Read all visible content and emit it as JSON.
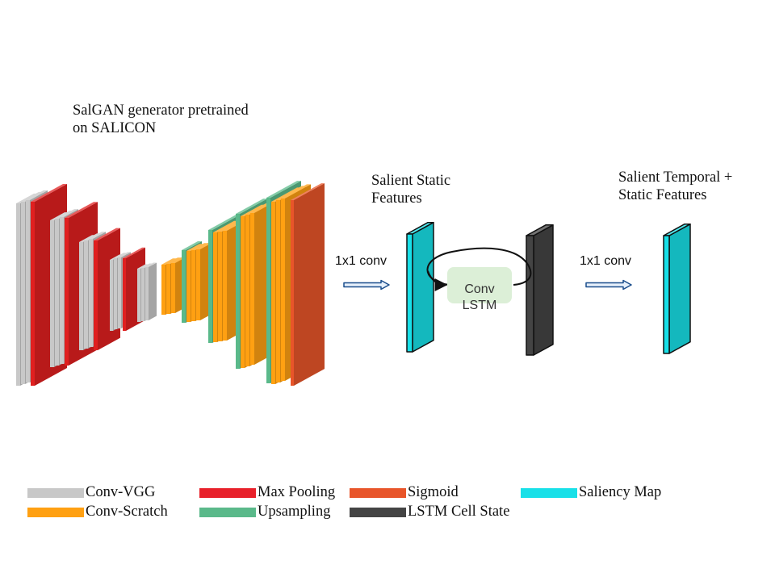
{
  "labels": {
    "generator": "SalGAN generator pretrained\non SALICON",
    "static_features": "Salient Static\nFeatures",
    "temporal_features": "Salient Temporal  +\nStatic Features",
    "conv1x1_a": "1x1 conv",
    "conv1x1_b": "1x1 conv",
    "conv_lstm": "Conv\nLSTM"
  },
  "legend": [
    {
      "label": "Conv-VGG",
      "color": "#c8c8c8"
    },
    {
      "label": "Conv-Scratch",
      "color": "#ffa012"
    },
    {
      "label": "Max Pooling",
      "color": "#e8202a"
    },
    {
      "label": "Upsampling",
      "color": "#5ab98a"
    },
    {
      "label": "Sigmoid",
      "color": "#e8552a"
    },
    {
      "label": "LSTM Cell State",
      "color": "#444444"
    },
    {
      "label": "Saliency Map",
      "color": "#18e0e8"
    }
  ],
  "colors": {
    "conv_vgg": "#c8c8c8",
    "conv_scratch": "#ffa012",
    "max_pooling": "#e02020",
    "upsampling": "#5ab98a",
    "sigmoid": "#e8552a",
    "lstm_cell_state": "#444444",
    "saliency_map": "#18e0e8",
    "lstm_box": "#dcefd7",
    "arrow_fill": "#e6f0fb"
  }
}
